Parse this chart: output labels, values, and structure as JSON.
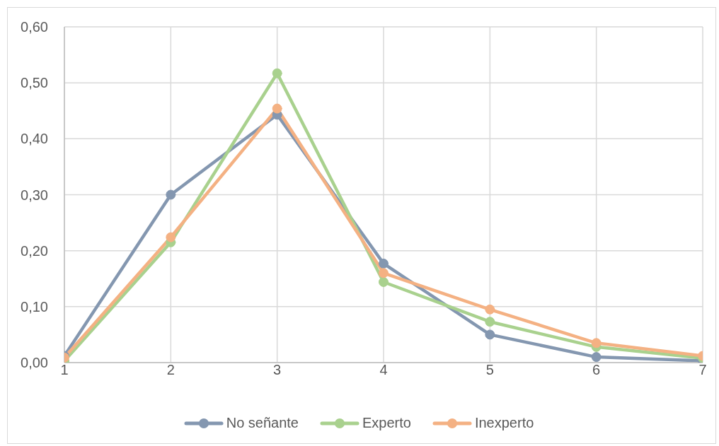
{
  "chart_data": {
    "type": "line",
    "categories": [
      "1",
      "2",
      "3",
      "4",
      "5",
      "6",
      "7"
    ],
    "series": [
      {
        "name": "No señante",
        "color": "#8497b0",
        "values": [
          0.012,
          0.3,
          0.443,
          0.177,
          0.05,
          0.01,
          0.003
        ]
      },
      {
        "name": "Experto",
        "color": "#a9d18e",
        "values": [
          0.003,
          0.215,
          0.517,
          0.144,
          0.073,
          0.028,
          0.008
        ]
      },
      {
        "name": "Inexperto",
        "color": "#f4b183",
        "values": [
          0.009,
          0.224,
          0.454,
          0.16,
          0.095,
          0.035,
          0.012
        ]
      }
    ],
    "ylim": [
      0,
      0.6
    ],
    "yticks": [
      {
        "value": 0,
        "label": "0,00"
      },
      {
        "value": 0.1,
        "label": "0,10"
      },
      {
        "value": 0.2,
        "label": "0,20"
      },
      {
        "value": 0.3,
        "label": "0,30"
      },
      {
        "value": 0.4,
        "label": "0,40"
      },
      {
        "value": 0.5,
        "label": "0,50"
      },
      {
        "value": 0.6,
        "label": "0,60"
      }
    ],
    "grid": true,
    "legend": "bottom",
    "marker": "circle",
    "line_style": "solid"
  }
}
